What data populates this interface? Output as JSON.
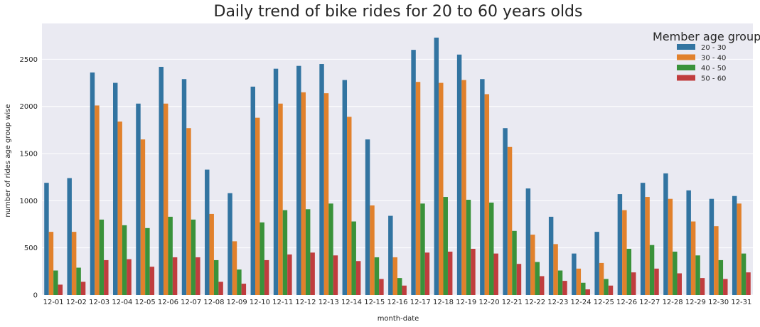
{
  "chart_data": {
    "type": "bar",
    "title": "Daily trend of bike rides for 20 to 60 years olds",
    "xlabel": "month-date",
    "ylabel": "number of rides age group wise",
    "ylim": [
      0,
      2880
    ],
    "yticks": [
      0,
      500,
      1000,
      1500,
      2000,
      2500
    ],
    "grid": true,
    "legend": {
      "title": "Member age group",
      "position": "top-right"
    },
    "categories": [
      "12-01",
      "12-02",
      "12-03",
      "12-04",
      "12-05",
      "12-06",
      "12-07",
      "12-08",
      "12-09",
      "12-10",
      "12-11",
      "12-12",
      "12-13",
      "12-14",
      "12-15",
      "12-16",
      "12-17",
      "12-18",
      "12-19",
      "12-20",
      "12-21",
      "12-22",
      "12-23",
      "12-24",
      "12-25",
      "12-26",
      "12-27",
      "12-28",
      "12-29",
      "12-30",
      "12-31"
    ],
    "series": [
      {
        "name": "20 - 30",
        "color": "#3274a1",
        "values": [
          1190,
          1240,
          2360,
          2250,
          2030,
          2420,
          2290,
          1330,
          1080,
          2210,
          2400,
          2430,
          2450,
          2280,
          1650,
          840,
          2600,
          2730,
          2550,
          2290,
          1770,
          1130,
          830,
          440,
          670,
          1070,
          1190,
          1290,
          1110,
          1020,
          1050
        ]
      },
      {
        "name": "30 - 40",
        "color": "#e1812c",
        "values": [
          670,
          670,
          2010,
          1840,
          1650,
          2030,
          1770,
          860,
          570,
          1880,
          2030,
          2150,
          2140,
          1890,
          950,
          400,
          2260,
          2250,
          2280,
          2130,
          1570,
          640,
          540,
          280,
          340,
          900,
          1040,
          1020,
          780,
          730,
          970
        ]
      },
      {
        "name": "40 - 50",
        "color": "#3a923a",
        "values": [
          260,
          290,
          800,
          740,
          710,
          830,
          800,
          370,
          270,
          770,
          900,
          910,
          970,
          780,
          400,
          180,
          970,
          1040,
          1010,
          980,
          680,
          350,
          260,
          130,
          170,
          490,
          530,
          460,
          420,
          370,
          440
        ]
      },
      {
        "name": "50 - 60",
        "color": "#c03d3e",
        "values": [
          110,
          140,
          370,
          380,
          300,
          400,
          400,
          140,
          120,
          370,
          430,
          450,
          420,
          360,
          170,
          100,
          450,
          460,
          490,
          440,
          330,
          200,
          150,
          60,
          100,
          240,
          280,
          230,
          180,
          170,
          240
        ]
      }
    ]
  }
}
